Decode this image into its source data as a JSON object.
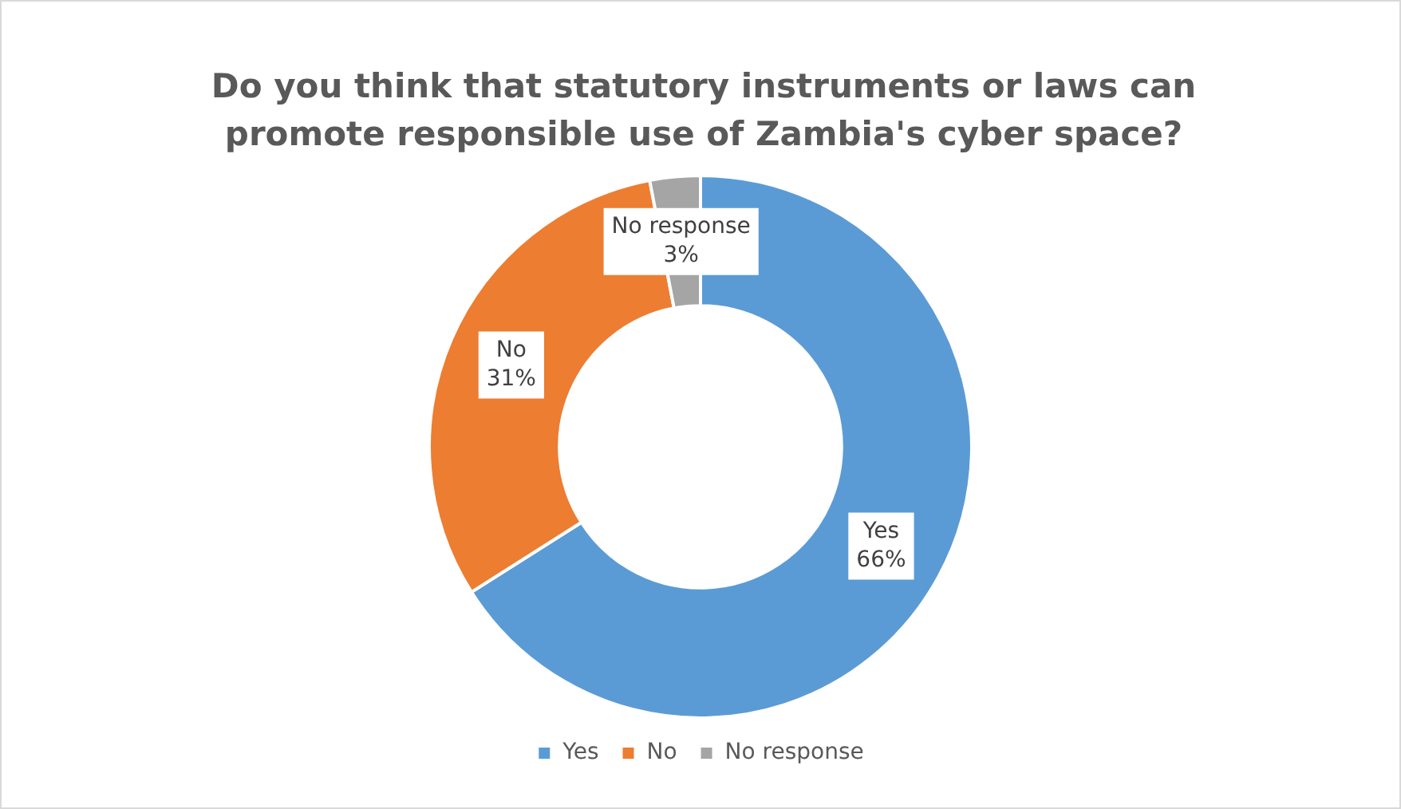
{
  "chart_data": {
    "type": "donut",
    "title": "Do you think that statutory instruments or laws can promote responsible use of Zambia's cyber space?",
    "categories": [
      "Yes",
      "No",
      "No response"
    ],
    "values": [
      66,
      31,
      3
    ],
    "colors": [
      "#5b9bd5",
      "#ed7d31",
      "#a5a5a5"
    ],
    "value_labels": [
      "66%",
      "31%",
      "3%"
    ],
    "legend": "bottom"
  }
}
